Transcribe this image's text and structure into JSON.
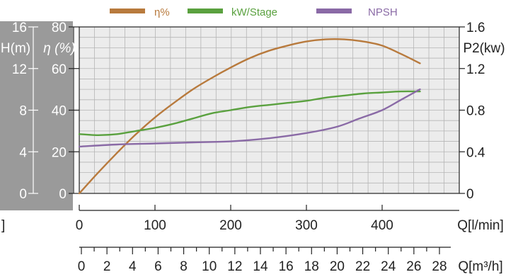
{
  "chart_data": {
    "type": "line",
    "x": {
      "label": "Q[l/min]",
      "ticks": [
        "0",
        "100",
        "200",
        "300",
        "400"
      ],
      "range": [
        0,
        500
      ]
    },
    "x2": {
      "label": "Q[m³/h]",
      "ticks": [
        "0",
        "2",
        "4",
        "6",
        "8",
        "10",
        "12",
        "14",
        "16",
        "18",
        "20",
        "22",
        "24",
        "26",
        "28"
      ],
      "range": [
        0,
        30
      ]
    },
    "y_left_outer": {
      "label": "H(m)",
      "ticks": [
        "0",
        "4",
        "8",
        "12",
        "16"
      ],
      "range": [
        0,
        16
      ]
    },
    "y_left_inner": {
      "label": "η (%)",
      "ticks": [
        "0",
        "20",
        "40",
        "60",
        "80"
      ],
      "range": [
        0,
        80
      ]
    },
    "y_right": {
      "label": "P2(kw)",
      "ticks": [
        "0",
        "0.4",
        "0.8",
        "1.2",
        "1.6"
      ],
      "range": [
        0,
        1.6
      ]
    },
    "cut_left_label": "]",
    "grid": true,
    "legend_position": "top",
    "series": [
      {
        "name": "η%",
        "axis": "y_left_inner",
        "color": "#b87a3d",
        "x": [
          0,
          25,
          50,
          75,
          100,
          125,
          150,
          175,
          200,
          225,
          250,
          275,
          300,
          325,
          350,
          375,
          400,
          425,
          450
        ],
        "y": [
          0,
          10,
          19.5,
          28.5,
          36.5,
          43.5,
          50,
          55.5,
          60.5,
          65,
          68.5,
          71,
          73,
          74,
          74,
          73,
          71,
          67,
          62.5
        ]
      },
      {
        "name": "kW/Stage",
        "axis": "y_right",
        "color": "#5aa13f",
        "x": [
          0,
          25,
          50,
          75,
          100,
          125,
          150,
          175,
          200,
          225,
          250,
          275,
          300,
          325,
          350,
          375,
          400,
          425,
          450
        ],
        "y": [
          0.57,
          0.56,
          0.57,
          0.6,
          0.63,
          0.67,
          0.72,
          0.77,
          0.8,
          0.83,
          0.85,
          0.87,
          0.89,
          0.92,
          0.94,
          0.96,
          0.97,
          0.98,
          0.98
        ]
      },
      {
        "name": "NPSH",
        "axis": "y_left_outer",
        "color": "#8a6aa6",
        "x": [
          0,
          50,
          100,
          150,
          200,
          250,
          300,
          340,
          370,
          400,
          425,
          450
        ],
        "y": [
          4.5,
          4.7,
          4.8,
          4.9,
          5.0,
          5.3,
          5.8,
          6.4,
          7.2,
          8.0,
          9.0,
          10.0
        ]
      }
    ]
  }
}
